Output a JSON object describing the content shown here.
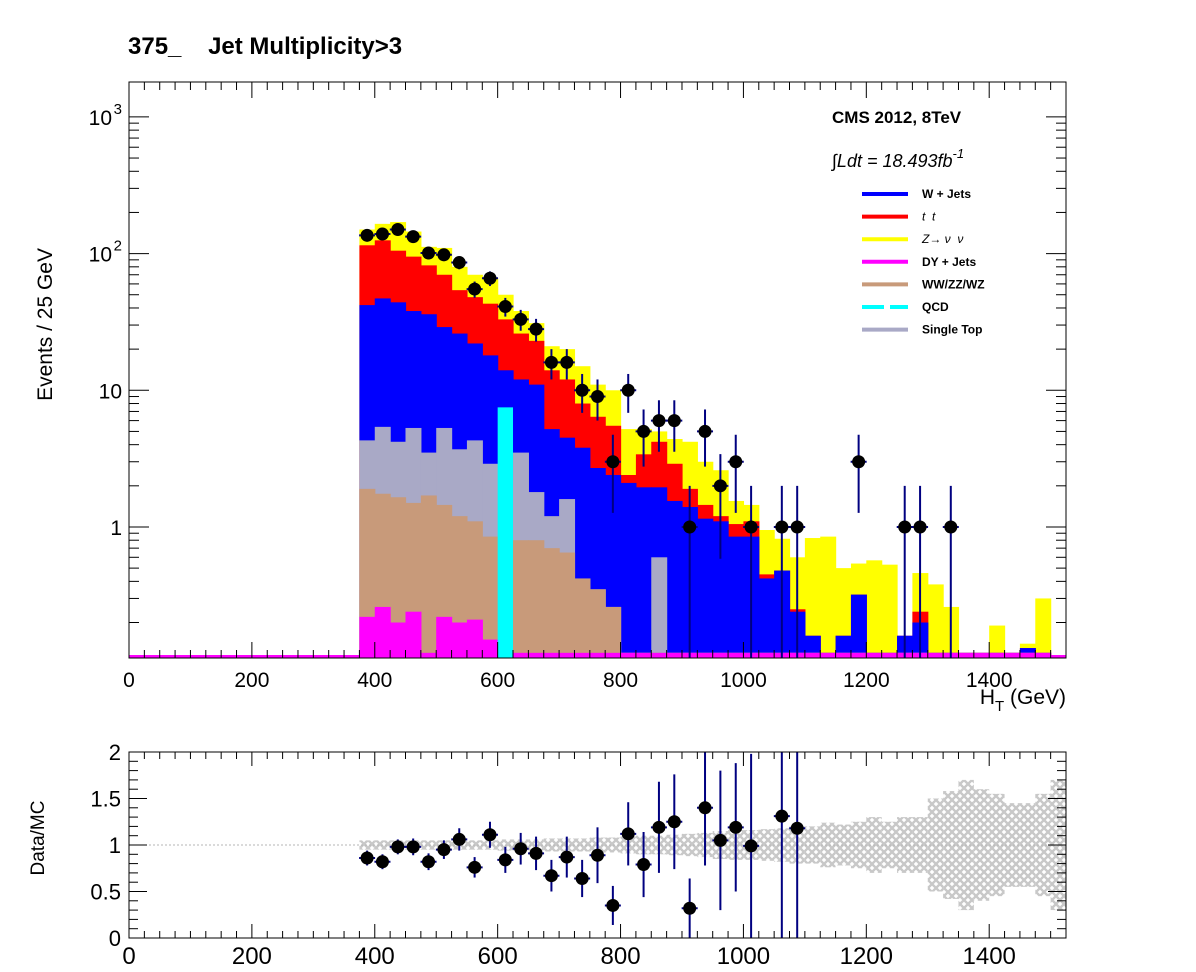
{
  "title": "375_    Jet Multiplicity>3",
  "experiment_label": "CMS 2012, 8TeV",
  "lumi_text": "∫Ldt = 18.493fb",
  "lumi_exponent": "-1",
  "colors": {
    "wjets": "#0000ff",
    "ttbar": "#ff0000",
    "znunu": "#ffff00",
    "dy": "#ff00ff",
    "diboson": "#c89a7a",
    "qcd": "#00ffff",
    "singletop": "#a9a9c6",
    "data": "#000000",
    "error_bar": "#000080",
    "uncert_band": "#c8c8c8"
  },
  "chart_data": [
    {
      "type": "bar",
      "stacked": true,
      "log_y": true,
      "xlabel": "H",
      "xlabel_sub": "T",
      "xlabel_unit": " (GeV)",
      "ylabel": "Events / 25 GeV",
      "xlim": [
        0,
        1525
      ],
      "ylim": [
        0.11,
        1800
      ],
      "x_ticks": [
        "0",
        "200",
        "400",
        "600",
        "800",
        "1000",
        "1200",
        "1400"
      ],
      "y_ticks": [
        "1",
        "10",
        "10",
        "10"
      ],
      "y_tick_exponents": [
        "",
        "",
        "2",
        "3"
      ],
      "bin_width": 25,
      "bin_start": 375,
      "legend": [
        {
          "key": "wjets",
          "label": "W + Jets"
        },
        {
          "key": "ttbar",
          "label": "t  t"
        },
        {
          "key": "znunu",
          "label": "Z→ ν  ν"
        },
        {
          "key": "dy",
          "label": "DY + Jets"
        },
        {
          "key": "diboson",
          "label": "WW/ZZ/WZ"
        },
        {
          "key": "qcd",
          "label": "QCD"
        },
        {
          "key": "singletop",
          "label": "Single Top"
        }
      ],
      "legend_position": "top-right",
      "stack_totals": {
        "dy": [
          0.22,
          0.26,
          0.2,
          0.24,
          0.12,
          0.22,
          0.2,
          0.21,
          0.15,
          0.12,
          0.12,
          0.12,
          0.12,
          0.12,
          0.12,
          0.12,
          0.12,
          0.12,
          0.12,
          0.12,
          0.12,
          0.12,
          0.12,
          0.12,
          0.12,
          0.12,
          0.12,
          0.12,
          0.12,
          0.12,
          0.12,
          0.12,
          0.12,
          0.12,
          0.12,
          0.12,
          0.12,
          0.12,
          0.12,
          0.12,
          0.12,
          0.12,
          0.12,
          0.12,
          0.12
        ],
        "diboson": [
          1.9,
          1.75,
          1.65,
          1.5,
          1.7,
          1.45,
          1.2,
          1.1,
          0.85,
          0.75,
          0.8,
          0.8,
          0.7,
          0.65,
          0.42,
          0.35,
          0.26,
          0.12,
          0.12,
          0.12,
          0.12,
          0.12,
          0.12,
          0.12,
          0.12,
          0.12,
          0.12,
          0.12,
          0.12,
          0.12,
          0.12,
          0.12,
          0.12,
          0.12,
          0.12,
          0.12,
          0.12,
          0.12,
          0.12,
          0.12,
          0.12,
          0.12,
          0.12,
          0.12,
          0.12
        ],
        "singletop": [
          4.3,
          5.4,
          4.2,
          5.3,
          3.5,
          5.3,
          3.7,
          4.3,
          2.9,
          2.2,
          3.5,
          1.8,
          1.2,
          1.6,
          0.42,
          0.35,
          0.26,
          0.12,
          0.12,
          0.6,
          0.12,
          0.12,
          0.12,
          0.12,
          0.12,
          0.12,
          0.12,
          0.12,
          0.12,
          0.12,
          0.12,
          0.12,
          0.12,
          0.12,
          0.12,
          0.12,
          0.12,
          0.12,
          0.12,
          0.12,
          0.12,
          0.12,
          0.12,
          0.12,
          0.12
        ],
        "wjets": [
          42,
          47,
          44,
          38,
          36,
          29,
          26,
          22,
          18,
          14,
          12,
          11,
          5.2,
          4.5,
          3.8,
          2.7,
          2.4,
          2.1,
          1.95,
          1.95,
          1.55,
          1.4,
          1.15,
          1.1,
          0.85,
          0.85,
          0.42,
          0.48,
          0.24,
          0.16,
          0.12,
          0.16,
          0.32,
          0.12,
          0.12,
          0.16,
          0.2,
          0.12,
          0.12,
          0.12,
          0.12,
          0.12,
          0.12,
          0.13,
          0.12
        ],
        "ttbar": [
          115,
          125,
          105,
          95,
          82,
          70,
          54,
          48,
          43,
          33,
          26,
          23,
          14,
          12,
          8,
          6.4,
          5.5,
          2.4,
          3.4,
          4.2,
          2.9,
          1.9,
          1.45,
          1.2,
          1.05,
          1.1,
          0.45,
          0.48,
          0.25,
          0.16,
          0.12,
          0.16,
          0.32,
          0.12,
          0.12,
          0.16,
          0.24,
          0.12,
          0.12,
          0.12,
          0.12,
          0.12,
          0.12,
          0.13,
          0.12
        ],
        "znunu": [
          150,
          165,
          170,
          145,
          112,
          110,
          80,
          70,
          66,
          50,
          38,
          31,
          21,
          20,
          15,
          11,
          10,
          5.2,
          5.2,
          5.0,
          4.4,
          4.2,
          3.0,
          2.6,
          1.55,
          1.45,
          0.95,
          0.82,
          0.6,
          0.83,
          0.85,
          0.5,
          0.54,
          0.57,
          0.53,
          0.12,
          0.46,
          0.38,
          0.26,
          0.12,
          0.12,
          0.19,
          0.12,
          0.14,
          0.3
        ]
      },
      "qcd_bins": [
        {
          "x0": 600,
          "x1": 625,
          "value": 7.5
        }
      ],
      "data": {
        "x": [
          387.5,
          412.5,
          437.5,
          462.5,
          487.5,
          512.5,
          537.5,
          562.5,
          587.5,
          612.5,
          637.5,
          662.5,
          687.5,
          712.5,
          737.5,
          762.5,
          787.5,
          812.5,
          837.5,
          862.5,
          887.5,
          912.5,
          937.5,
          962.5,
          987.5,
          1012.5,
          1062.5,
          1087.5,
          1187.5,
          1262.5,
          1287.5,
          1337.5
        ],
        "y": [
          136,
          139,
          150,
          133,
          101,
          98,
          86,
          55,
          66,
          41,
          33,
          28,
          16,
          16,
          10,
          9,
          3,
          10,
          5,
          6,
          6,
          1,
          5,
          2,
          3,
          1,
          1,
          1,
          3,
          1,
          1,
          1
        ]
      }
    },
    {
      "type": "scatter",
      "ylabel": "Data/MC",
      "xlim": [
        0,
        1525
      ],
      "ylim": [
        0,
        2
      ],
      "x_ticks": [
        "0",
        "200",
        "400",
        "600",
        "800",
        "1000",
        "1200",
        "1400"
      ],
      "y_ticks": [
        "0",
        "0.5",
        "1",
        "1.5",
        "2"
      ],
      "reference_line": 1,
      "ratio": {
        "x": [
          387.5,
          412.5,
          437.5,
          462.5,
          487.5,
          512.5,
          537.5,
          562.5,
          587.5,
          612.5,
          637.5,
          662.5,
          687.5,
          712.5,
          737.5,
          762.5,
          787.5,
          812.5,
          837.5,
          862.5,
          887.5,
          912.5,
          937.5,
          962.5,
          987.5,
          1012.5,
          1062.5,
          1087.5
        ],
        "y": [
          0.86,
          0.82,
          0.98,
          0.98,
          0.82,
          0.95,
          1.06,
          0.76,
          1.11,
          0.84,
          0.96,
          0.91,
          0.67,
          0.87,
          0.64,
          0.89,
          0.35,
          1.12,
          0.79,
          1.19,
          1.25,
          0.32,
          1.4,
          1.05,
          1.19,
          0.99,
          1.31,
          1.18
        ],
        "err": [
          0.08,
          0.08,
          0.08,
          0.09,
          0.09,
          0.1,
          0.12,
          0.11,
          0.14,
          0.14,
          0.17,
          0.18,
          0.17,
          0.22,
          0.2,
          0.3,
          0.21,
          0.34,
          0.35,
          0.49,
          0.51,
          0.32,
          0.62,
          0.75,
          0.69,
          0.99,
          1.31,
          1.18
        ]
      },
      "uncert_band": {
        "x": [
          375,
          400,
          425,
          450,
          475,
          500,
          525,
          550,
          575,
          600,
          625,
          650,
          675,
          700,
          725,
          750,
          775,
          800,
          825,
          850,
          875,
          900,
          925,
          950,
          975,
          1000,
          1025,
          1050,
          1075,
          1100,
          1125,
          1150,
          1175,
          1200,
          1225,
          1250,
          1275,
          1300,
          1325,
          1350,
          1375,
          1400,
          1425,
          1450,
          1475,
          1500
        ],
        "half_width": [
          0.05,
          0.05,
          0.05,
          0.05,
          0.05,
          0.05,
          0.05,
          0.05,
          0.05,
          0.06,
          0.06,
          0.06,
          0.07,
          0.07,
          0.07,
          0.08,
          0.08,
          0.09,
          0.1,
          0.1,
          0.11,
          0.12,
          0.13,
          0.15,
          0.16,
          0.16,
          0.17,
          0.18,
          0.2,
          0.2,
          0.24,
          0.22,
          0.25,
          0.3,
          0.25,
          0.3,
          0.3,
          0.5,
          0.58,
          0.7,
          0.6,
          0.55,
          0.45,
          0.45,
          0.55,
          0.7
        ]
      }
    }
  ]
}
